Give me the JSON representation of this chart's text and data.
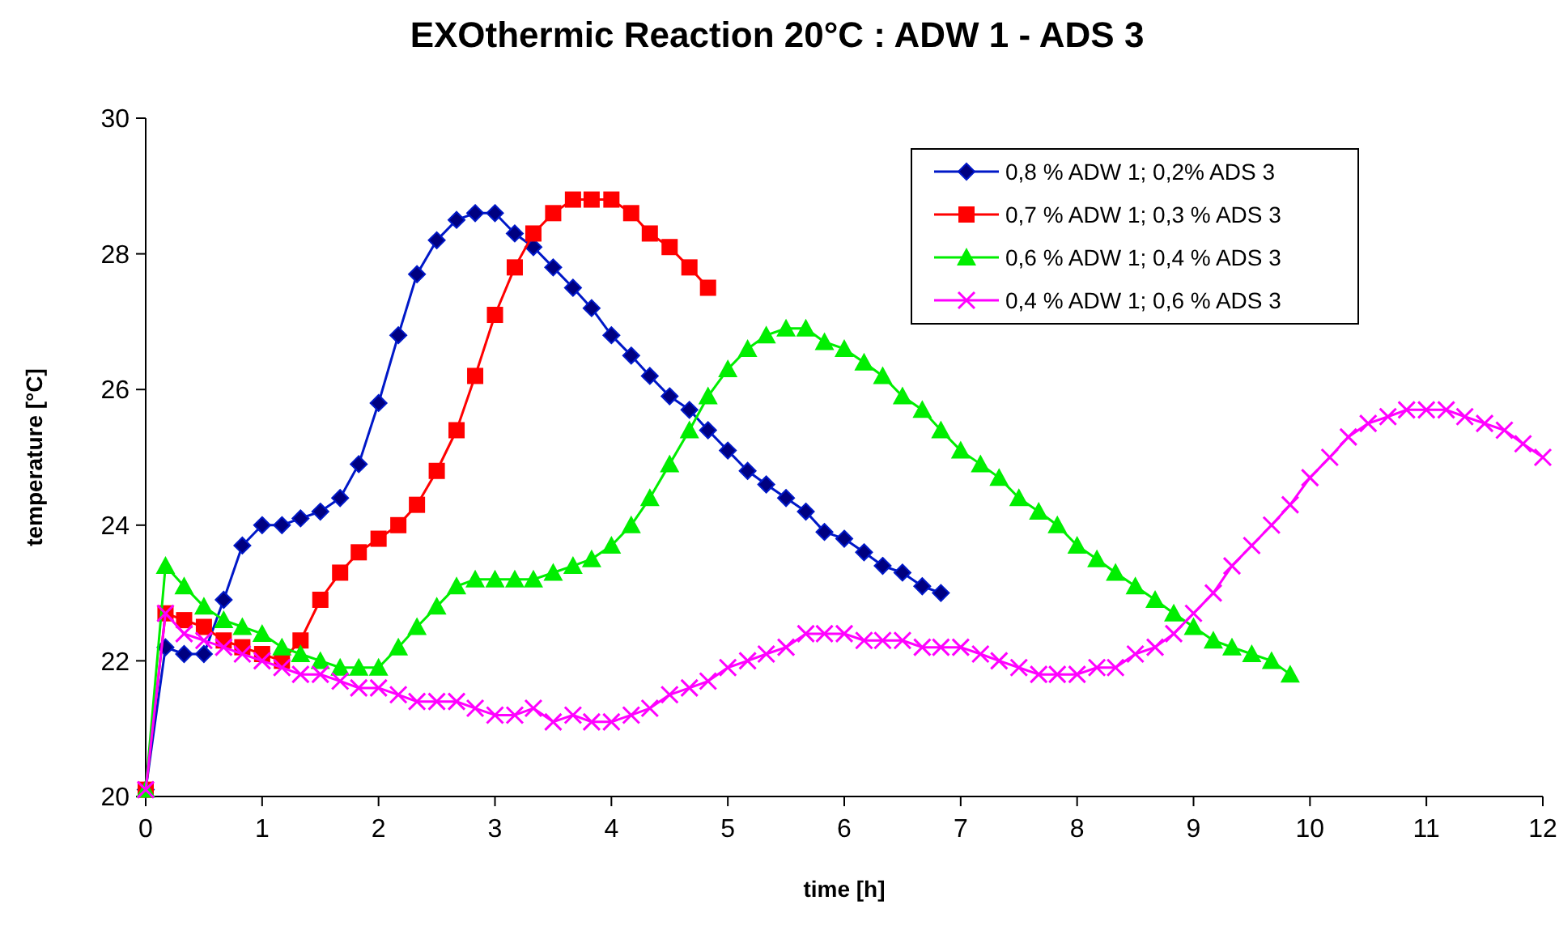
{
  "chart_data": {
    "type": "line",
    "title": "EXOthermic Reaction   20°C :   ADW 1  -  ADS 3",
    "xlabel": "time [h]",
    "ylabel": "temperature [°C]",
    "series": [
      {
        "name": "0,8 % ADW 1;  0,2% ADS 3",
        "color": "#0018c8",
        "marker": "diamond",
        "x": [
          0,
          0.17,
          0.33,
          0.5,
          0.67,
          0.83,
          1,
          1.17,
          1.33,
          1.5,
          1.67,
          1.83,
          2,
          2.17,
          2.33,
          2.5,
          2.67,
          2.83,
          3,
          3.17,
          3.33,
          3.5,
          3.67,
          3.83,
          4,
          4.17,
          4.33,
          4.5,
          4.67,
          4.83,
          5,
          5.17,
          5.33,
          5.5,
          5.67,
          5.83,
          6,
          6.17,
          6.33,
          6.5,
          6.67,
          6.83
        ],
        "values": [
          20.1,
          22.2,
          22.1,
          22.1,
          22.9,
          23.7,
          24.0,
          24.0,
          24.1,
          24.2,
          24.4,
          24.9,
          25.8,
          26.8,
          27.7,
          28.2,
          28.5,
          28.6,
          28.6,
          28.3,
          28.1,
          27.8,
          27.5,
          27.2,
          26.8,
          26.5,
          26.2,
          25.9,
          25.7,
          25.4,
          25.1,
          24.8,
          24.6,
          24.4,
          24.2,
          23.9,
          23.8,
          23.6,
          23.4,
          23.3,
          23.1,
          23.0
        ]
      },
      {
        "name": "0,7 % ADW 1;  0,3 % ADS 3",
        "color": "#ff0000",
        "marker": "square",
        "x": [
          0,
          0.17,
          0.33,
          0.5,
          0.67,
          0.83,
          1,
          1.17,
          1.33,
          1.5,
          1.67,
          1.83,
          2,
          2.17,
          2.33,
          2.5,
          2.67,
          2.83,
          3,
          3.17,
          3.33,
          3.5,
          3.67,
          3.83,
          4,
          4.17,
          4.33,
          4.5,
          4.67,
          4.83
        ],
        "values": [
          20.1,
          22.7,
          22.6,
          22.5,
          22.3,
          22.2,
          22.1,
          22.0,
          22.3,
          22.9,
          23.3,
          23.6,
          23.8,
          24.0,
          24.3,
          24.8,
          25.4,
          26.2,
          27.1,
          27.8,
          28.3,
          28.6,
          28.8,
          28.8,
          28.8,
          28.6,
          28.3,
          28.1,
          27.8,
          27.5
        ]
      },
      {
        "name": "0,6 % ADW 1;  0,4 % ADS 3",
        "color": "#00ee00",
        "marker": "triangle",
        "x": [
          0,
          0.17,
          0.33,
          0.5,
          0.67,
          0.83,
          1,
          1.17,
          1.33,
          1.5,
          1.67,
          1.83,
          2,
          2.17,
          2.33,
          2.5,
          2.67,
          2.83,
          3,
          3.17,
          3.33,
          3.5,
          3.67,
          3.83,
          4,
          4.17,
          4.33,
          4.5,
          4.67,
          4.83,
          5,
          5.17,
          5.33,
          5.5,
          5.67,
          5.83,
          6,
          6.17,
          6.33,
          6.5,
          6.67,
          6.83,
          7,
          7.17,
          7.33,
          7.5,
          7.67,
          7.83,
          8,
          8.17,
          8.33,
          8.5,
          8.67,
          8.83,
          9,
          9.17,
          9.33,
          9.5,
          9.67,
          9.83
        ],
        "values": [
          20.1,
          23.4,
          23.1,
          22.8,
          22.6,
          22.5,
          22.4,
          22.2,
          22.1,
          22.0,
          21.9,
          21.9,
          21.9,
          22.2,
          22.5,
          22.8,
          23.1,
          23.2,
          23.2,
          23.2,
          23.2,
          23.3,
          23.4,
          23.5,
          23.7,
          24.0,
          24.4,
          24.9,
          25.4,
          25.9,
          26.3,
          26.6,
          26.8,
          26.9,
          26.9,
          26.7,
          26.6,
          26.4,
          26.2,
          25.9,
          25.7,
          25.4,
          25.1,
          24.9,
          24.7,
          24.4,
          24.2,
          24.0,
          23.7,
          23.5,
          23.3,
          23.1,
          22.9,
          22.7,
          22.5,
          22.3,
          22.2,
          22.1,
          22.0,
          21.8
        ]
      },
      {
        "name": "0,4 % ADW 1;  0,6 % ADS 3",
        "color": "#ff00ff",
        "marker": "cross",
        "x": [
          0,
          0.17,
          0.33,
          0.5,
          0.67,
          0.83,
          1,
          1.17,
          1.33,
          1.5,
          1.67,
          1.83,
          2,
          2.17,
          2.33,
          2.5,
          2.67,
          2.83,
          3,
          3.17,
          3.33,
          3.5,
          3.67,
          3.83,
          4,
          4.17,
          4.33,
          4.5,
          4.67,
          4.83,
          5,
          5.17,
          5.33,
          5.5,
          5.67,
          5.83,
          6,
          6.17,
          6.33,
          6.5,
          6.67,
          6.83,
          7,
          7.17,
          7.33,
          7.5,
          7.67,
          7.83,
          8,
          8.17,
          8.33,
          8.5,
          8.67,
          8.83,
          9,
          9.17,
          9.33,
          9.5,
          9.67,
          9.83,
          10,
          10.17,
          10.33,
          10.5,
          10.67,
          10.83,
          11,
          11.17,
          11.33,
          11.5,
          11.67,
          11.83,
          12
        ],
        "values": [
          20.1,
          22.7,
          22.4,
          22.3,
          22.2,
          22.1,
          22.0,
          21.9,
          21.8,
          21.8,
          21.7,
          21.6,
          21.6,
          21.5,
          21.4,
          21.4,
          21.4,
          21.3,
          21.2,
          21.2,
          21.3,
          21.1,
          21.2,
          21.1,
          21.1,
          21.2,
          21.3,
          21.5,
          21.6,
          21.7,
          21.9,
          22.0,
          22.1,
          22.2,
          22.4,
          22.4,
          22.4,
          22.3,
          22.3,
          22.3,
          22.2,
          22.2,
          22.2,
          22.1,
          22.0,
          21.9,
          21.8,
          21.8,
          21.8,
          21.9,
          21.9,
          22.1,
          22.2,
          22.4,
          22.7,
          23.0,
          23.4,
          23.7,
          24.0,
          24.3,
          24.7,
          25.0,
          25.3,
          25.5,
          25.6,
          25.7,
          25.7,
          25.7,
          25.6,
          25.5,
          25.4,
          25.2,
          25.0
        ]
      }
    ],
    "xlim": [
      0,
      12
    ],
    "xticks": [
      0,
      1,
      2,
      3,
      4,
      5,
      6,
      7,
      8,
      9,
      10,
      11,
      12
    ],
    "ylim": [
      20,
      30
    ],
    "yticks": [
      20,
      22,
      24,
      26,
      28,
      30
    ],
    "grid": false,
    "legend": "top right",
    "line_style": "solid"
  }
}
